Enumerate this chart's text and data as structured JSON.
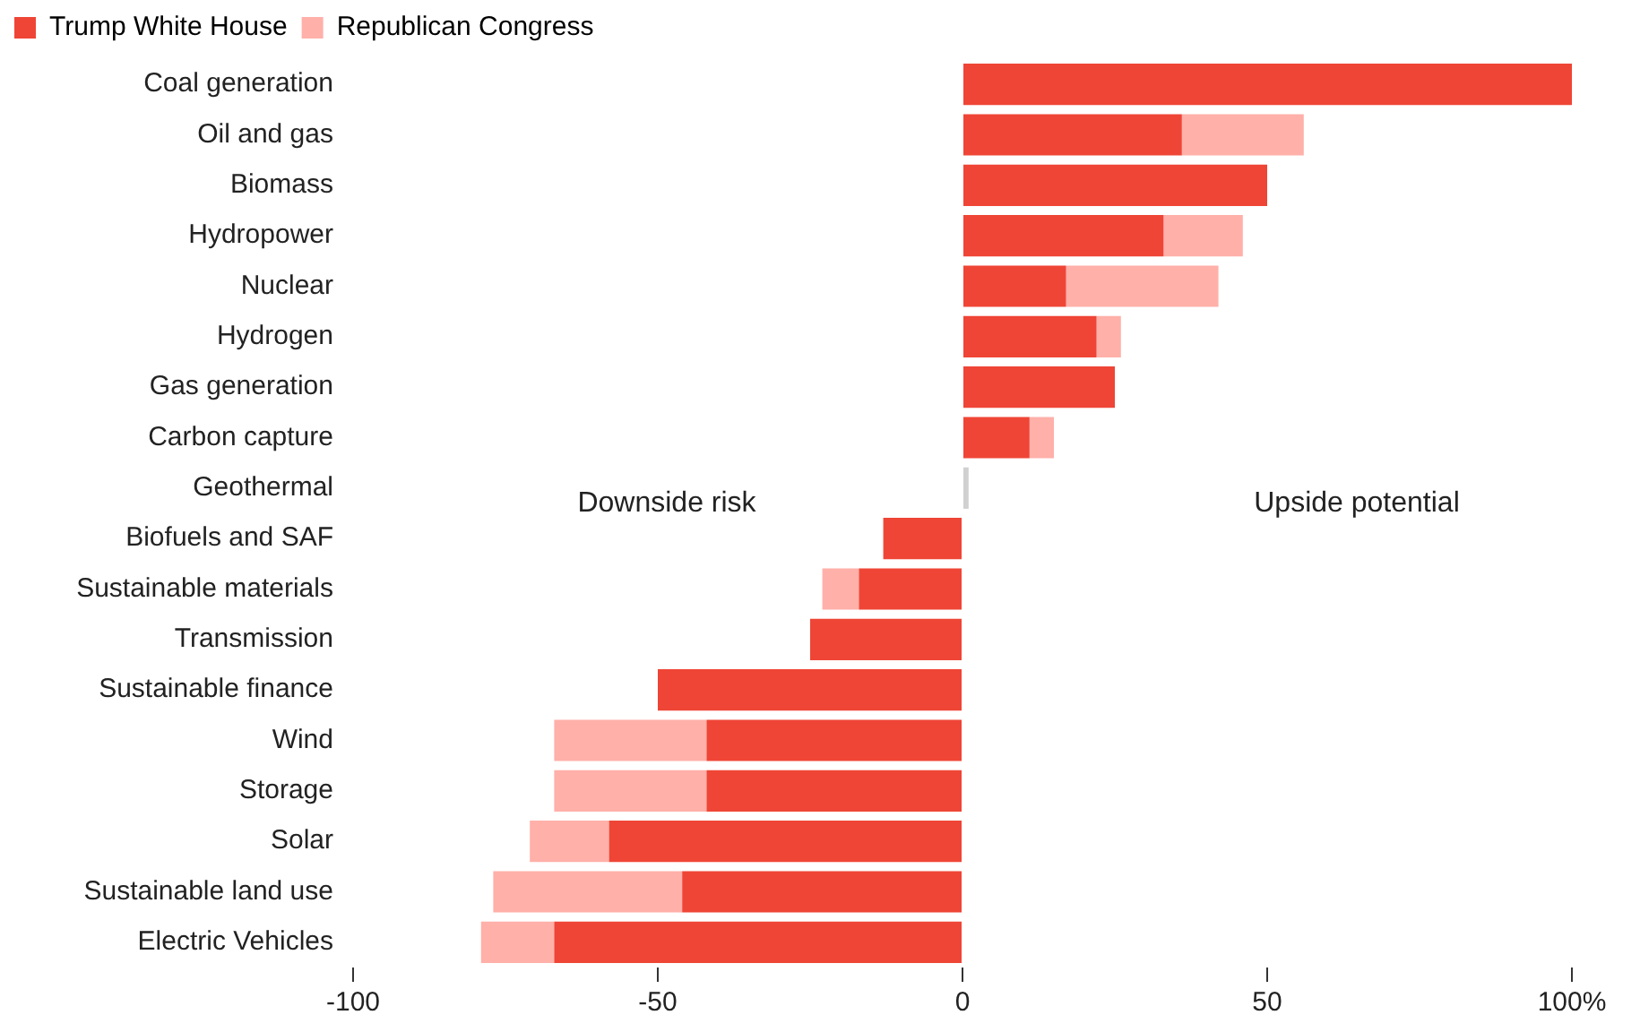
{
  "chart_data": {
    "type": "bar",
    "orientation": "horizontal",
    "stacked": true,
    "categories": [
      "Coal generation",
      "Oil and gas",
      "Biomass",
      "Hydropower",
      "Nuclear",
      "Hydrogen",
      "Gas generation",
      "Carbon capture",
      "Geothermal",
      "Biofuels and SAF",
      "Sustainable materials",
      "Transmission",
      "Sustainable finance",
      "Wind",
      "Storage",
      "Solar",
      "Sustainable land use",
      "Electric Vehicles"
    ],
    "series": [
      {
        "name": "Trump White House",
        "color": "#ef4536",
        "colors": [
          "#ef4536",
          "#ef4536",
          "#ef4536",
          "#ef4536",
          "#ef4536",
          "#ef4536",
          "#ef4536",
          "#ef4536",
          "#d0d0d0",
          "#ef4536",
          "#ef4536",
          "#ef4536",
          "#ef4536",
          "#ef4536",
          "#ef4536",
          "#ef4536",
          "#ef4536",
          "#ef4536"
        ],
        "values": [
          100,
          36,
          50,
          33,
          17,
          22,
          25,
          11,
          1,
          -13,
          -17,
          -25,
          -50,
          -42,
          -42,
          -58,
          -46,
          -67
        ]
      },
      {
        "name": "Republican Congress",
        "color": "#ffb0a9",
        "values": [
          0,
          20,
          0,
          13,
          25,
          4,
          0,
          4,
          0,
          0,
          -6,
          0,
          0,
          -25,
          -25,
          -13,
          -31,
          -12
        ]
      }
    ],
    "xlim": [
      -100,
      100
    ],
    "xticks": [
      -100,
      -50,
      0,
      50,
      {
        "value": 100,
        "label": "100%"
      }
    ],
    "grid": false,
    "legend": "top left",
    "annotations": [
      "Downside risk",
      "Upside potential"
    ]
  }
}
